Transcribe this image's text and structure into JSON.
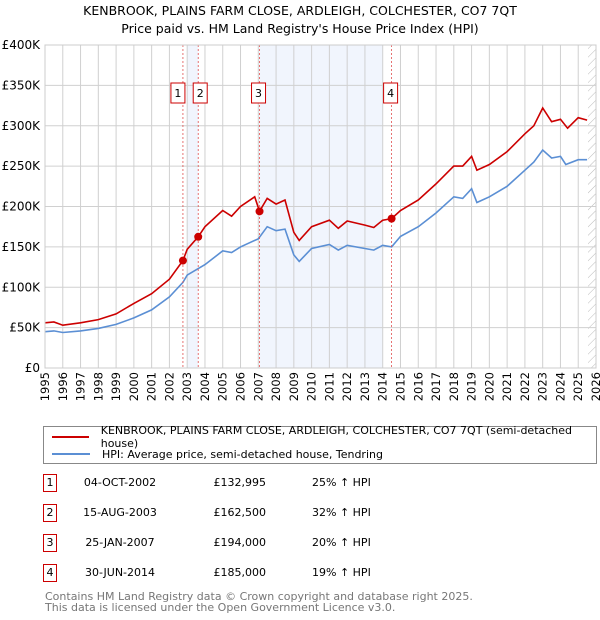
{
  "chart_data": {
    "type": "line",
    "title": "KENBROOK, PLAINS FARM CLOSE, ARDLEIGH, COLCHESTER, CO7 7QT",
    "subtitle": "Price paid vs. HM Land Registry's House Price Index (HPI)",
    "xlim": [
      1995,
      2026
    ],
    "ylim": [
      0,
      400000
    ],
    "yticks": [
      {
        "v": 0,
        "label": "£0"
      },
      {
        "v": 50000,
        "label": "£50K"
      },
      {
        "v": 100000,
        "label": "£100K"
      },
      {
        "v": 150000,
        "label": "£150K"
      },
      {
        "v": 200000,
        "label": "£200K"
      },
      {
        "v": 250000,
        "label": "£250K"
      },
      {
        "v": 300000,
        "label": "£300K"
      },
      {
        "v": 350000,
        "label": "£350K"
      },
      {
        "v": 400000,
        "label": "£400K"
      }
    ],
    "xticks": [
      "1995",
      "1996",
      "1997",
      "1998",
      "1999",
      "2000",
      "2001",
      "2002",
      "2003",
      "2004",
      "2005",
      "2006",
      "2007",
      "2008",
      "2009",
      "2010",
      "2011",
      "2012",
      "2013",
      "2014",
      "2015",
      "2016",
      "2017",
      "2018",
      "2019",
      "2020",
      "2021",
      "2022",
      "2023",
      "2024",
      "2025",
      "2026"
    ],
    "grid": true,
    "shaded_periods": [
      [
        2003.0,
        2003.62
      ],
      [
        2007.07,
        2014.0
      ]
    ],
    "forecast_hatch_from": 2025.55,
    "series": [
      {
        "name": "KENBROOK, PLAINS FARM CLOSE, ARDLEIGH, COLCHESTER, CO7 7QT (semi-detached house)",
        "color": "#cc0000",
        "x": [
          1995,
          1995.5,
          1996,
          1997,
          1998,
          1999,
          2000,
          2001,
          2002,
          2002.76,
          2003,
          2003.62,
          2004,
          2005,
          2005.5,
          2006,
          2006.8,
          2007.07,
          2007.5,
          2008,
          2008.5,
          2009,
          2009.3,
          2010,
          2011,
          2011.5,
          2012,
          2013,
          2013.5,
          2014,
          2014.5,
          2015,
          2016,
          2017,
          2018,
          2018.5,
          2019,
          2019.3,
          2020,
          2021,
          2022,
          2022.5,
          2023,
          2023.5,
          2024,
          2024.4,
          2025,
          2025.5
        ],
        "y": [
          56000,
          57000,
          53000,
          56000,
          60000,
          67000,
          80000,
          92000,
          110000,
          132995,
          147000,
          162500,
          175000,
          195000,
          188000,
          200000,
          212000,
          194000,
          210000,
          203000,
          208000,
          168000,
          158000,
          175000,
          183000,
          173000,
          182000,
          177000,
          174000,
          183000,
          185000,
          195000,
          208000,
          228000,
          250000,
          250000,
          262000,
          245000,
          252000,
          268000,
          290000,
          300000,
          322000,
          305000,
          308000,
          297000,
          310000,
          307000
        ]
      },
      {
        "name": "HPI: Average price, semi-detached house, Tendring",
        "color": "#5b8fd4",
        "x": [
          1995,
          1995.5,
          1996,
          1997,
          1998,
          1999,
          2000,
          2001,
          2002,
          2002.76,
          2003,
          2004,
          2005,
          2005.5,
          2006,
          2007,
          2007.5,
          2008,
          2008.5,
          2009,
          2009.3,
          2010,
          2011,
          2011.5,
          2012,
          2013,
          2013.5,
          2014,
          2014.5,
          2015,
          2016,
          2017,
          2018,
          2018.5,
          2019,
          2019.3,
          2020,
          2021,
          2022,
          2022.5,
          2023,
          2023.5,
          2024,
          2024.3,
          2025,
          2025.5
        ],
        "y": [
          45000,
          46000,
          44000,
          46000,
          49000,
          54000,
          62000,
          72000,
          88000,
          106000,
          115000,
          128000,
          145000,
          143000,
          150000,
          160000,
          175000,
          170000,
          172000,
          140000,
          132000,
          148000,
          153000,
          146000,
          152000,
          148000,
          146000,
          152000,
          150000,
          163000,
          175000,
          192000,
          212000,
          210000,
          222000,
          205000,
          212000,
          225000,
          245000,
          255000,
          270000,
          260000,
          262000,
          252000,
          258000,
          258000
        ]
      }
    ],
    "sales": [
      {
        "id": "1",
        "x": 2002.76,
        "y": 132995
      },
      {
        "id": "2",
        "x": 2003.62,
        "y": 162500
      },
      {
        "id": "3",
        "x": 2007.07,
        "y": 194000
      },
      {
        "id": "4",
        "x": 2014.5,
        "y": 185000
      }
    ]
  },
  "legend": {
    "red": "KENBROOK, PLAINS FARM CLOSE, ARDLEIGH, COLCHESTER, CO7 7QT (semi-detached house)",
    "blue": "HPI: Average price, semi-detached house, Tendring"
  },
  "transactions": [
    {
      "num": "1",
      "date": "04-OCT-2002",
      "price": "£132,995",
      "hpi": "25% ↑ HPI"
    },
    {
      "num": "2",
      "date": "15-AUG-2003",
      "price": "£162,500",
      "hpi": "32% ↑ HPI"
    },
    {
      "num": "3",
      "date": "25-JAN-2007",
      "price": "£194,000",
      "hpi": "20% ↑ HPI"
    },
    {
      "num": "4",
      "date": "30-JUN-2014",
      "price": "£185,000",
      "hpi": "19% ↑ HPI"
    }
  ],
  "footer": {
    "line1": "Contains HM Land Registry data © Crown copyright and database right 2025.",
    "line2": "This data is licensed under the Open Government Licence v3.0."
  }
}
